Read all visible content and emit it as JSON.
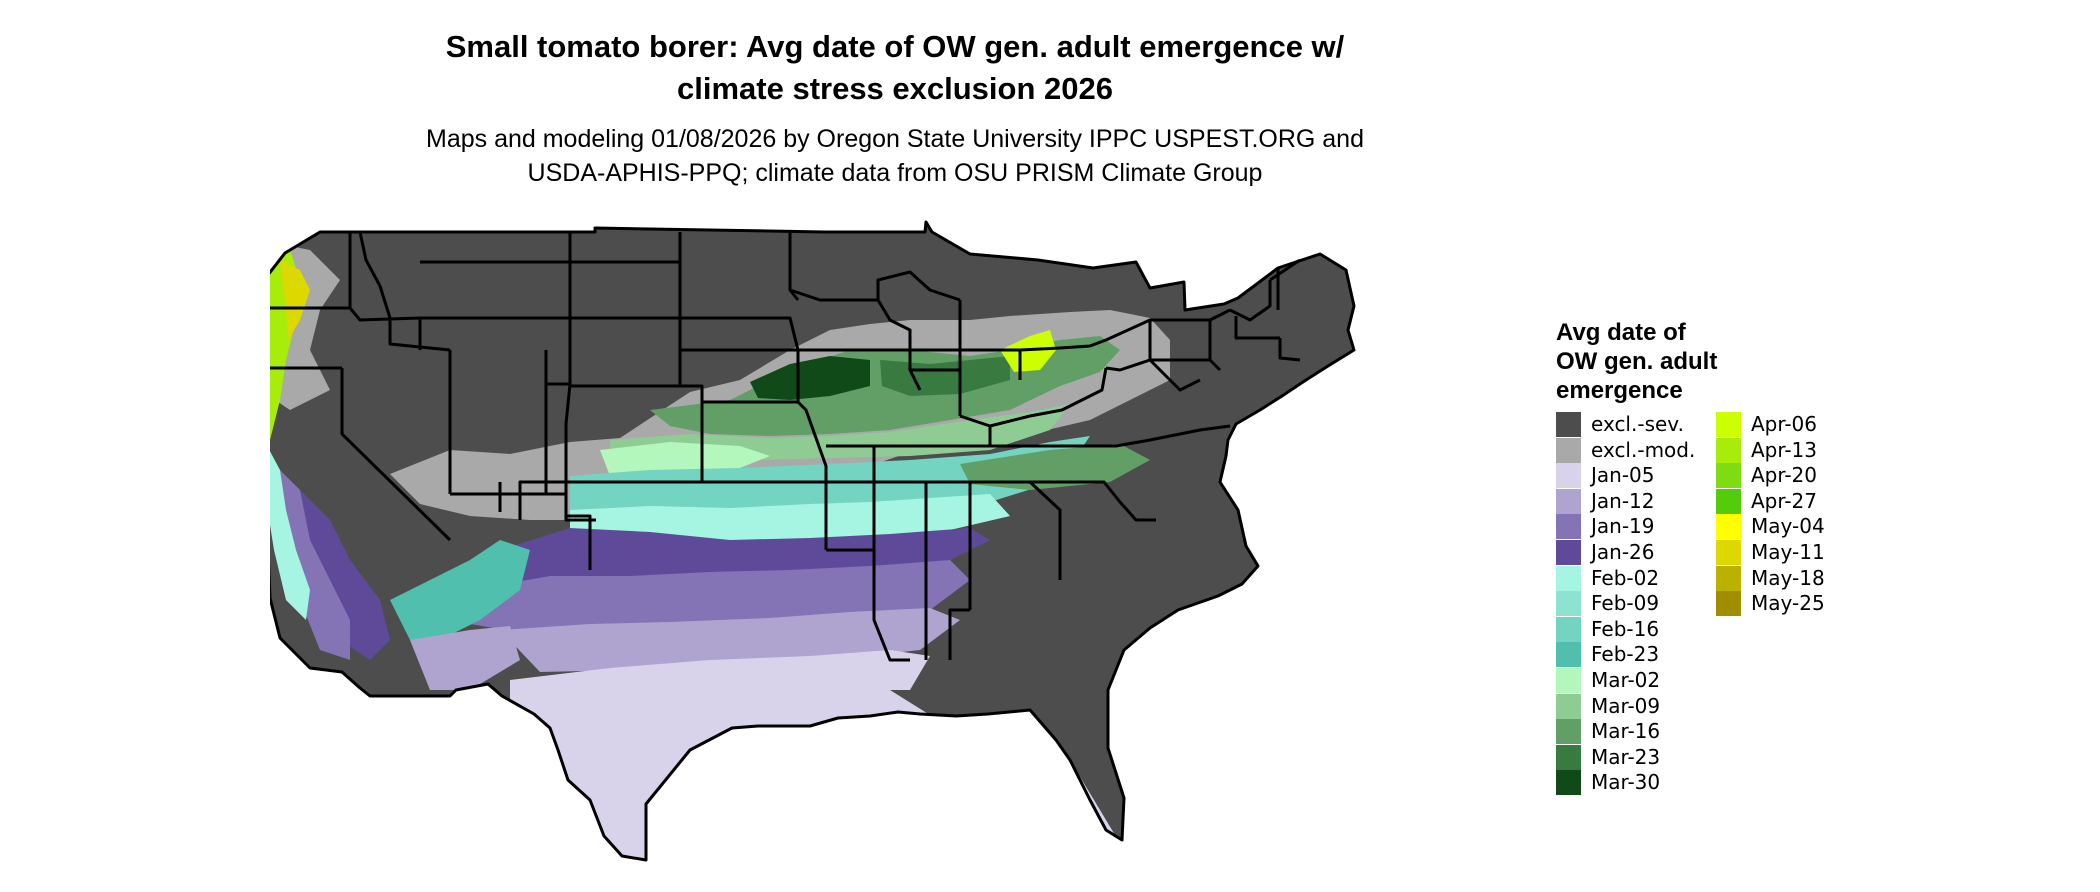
{
  "title": [
    "Small tomato borer: Avg date of OW gen. adult emergence w/",
    "climate stress exclusion 2026"
  ],
  "subtitle": [
    "Maps and modeling 01/08/2026 by Oregon State University IPPC USPEST.ORG and",
    "USDA-APHIS-PPQ; climate data from OSU PRISM Climate Group"
  ],
  "legend": {
    "title": [
      "Avg date of",
      "OW gen. adult",
      "emergence"
    ],
    "items": [
      {
        "label": "excl.-sev.",
        "color": "#4d4d4d"
      },
      {
        "label": "excl.-mod.",
        "color": "#a9a9a9"
      },
      {
        "label": "Jan-05",
        "color": "#d8d3ea"
      },
      {
        "label": "Jan-12",
        "color": "#aea4cf"
      },
      {
        "label": "Jan-19",
        "color": "#8574b5"
      },
      {
        "label": "Jan-26",
        "color": "#5f4a9a"
      },
      {
        "label": "Feb-02",
        "color": "#a6f5e3"
      },
      {
        "label": "Feb-09",
        "color": "#8ee3d0"
      },
      {
        "label": "Feb-16",
        "color": "#72d4c1"
      },
      {
        "label": "Feb-23",
        "color": "#50bfae"
      },
      {
        "label": "Mar-02",
        "color": "#b4f7bd"
      },
      {
        "label": "Mar-09",
        "color": "#8ecc94"
      },
      {
        "label": "Mar-16",
        "color": "#629f67"
      },
      {
        "label": "Mar-23",
        "color": "#387a3f"
      },
      {
        "label": "Mar-30",
        "color": "#0f4a18"
      },
      {
        "label": "Apr-06",
        "color": "#ccff00"
      },
      {
        "label": "Apr-13",
        "color": "#a8ec0c"
      },
      {
        "label": "Apr-20",
        "color": "#7fdc12"
      },
      {
        "label": "Apr-27",
        "color": "#55cc0a"
      },
      {
        "label": "May-04",
        "color": "#ffff00"
      },
      {
        "label": "May-11",
        "color": "#dcd800"
      },
      {
        "label": "May-18",
        "color": "#bdb100"
      },
      {
        "label": "May-25",
        "color": "#a18d00"
      }
    ]
  }
}
